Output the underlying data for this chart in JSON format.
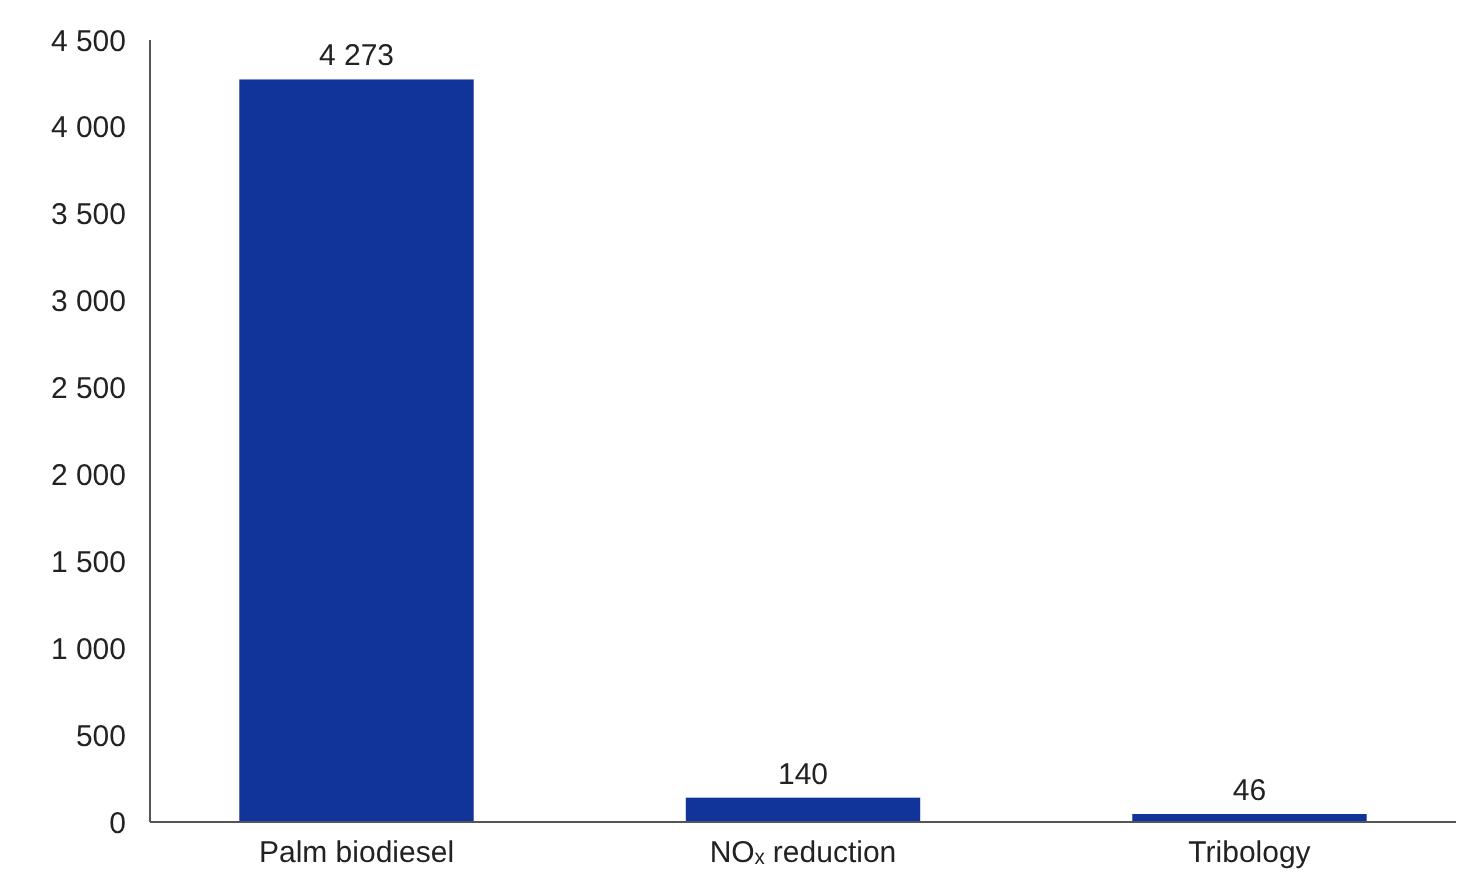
{
  "chart_data": {
    "type": "bar",
    "categories": [
      "Palm biodiesel",
      "NOₓ reduction",
      "Tribology"
    ],
    "values": [
      4273,
      140,
      46
    ],
    "color": "#11349a",
    "value_labels": [
      "4 273",
      "140",
      "46"
    ],
    "ylim": [
      0,
      4500
    ],
    "yticks": [
      0,
      {
        "value": 500,
        "label": "500"
      },
      {
        "value": 1000,
        "label": "1 000"
      },
      {
        "value": 1500,
        "label": "1 500"
      },
      {
        "value": 2000,
        "label": "2 000"
      },
      {
        "value": 2500,
        "label": "2 500"
      },
      {
        "value": 3000,
        "label": "3 000"
      },
      {
        "value": 3500,
        "label": "3 500"
      },
      {
        "value": 4000,
        "label": "4 000"
      },
      {
        "value": 4500,
        "label": "4 500"
      }
    ],
    "grid": false
  }
}
